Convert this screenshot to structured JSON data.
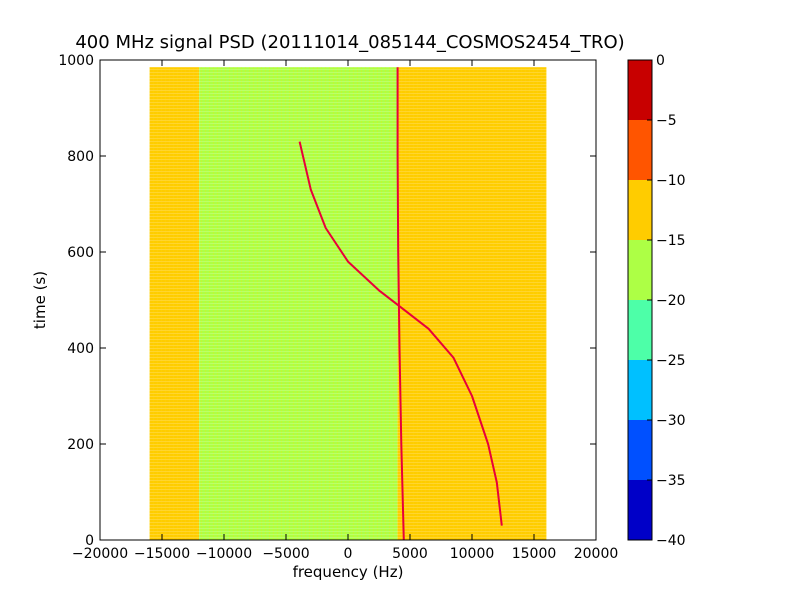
{
  "chart_data": {
    "type": "heatmap",
    "title": "400 MHz signal PSD (20111014_085144_COSMOS2454_TRO)",
    "xlabel": "frequency (Hz)",
    "ylabel": "time (s)",
    "xlim": [
      -20000,
      20000
    ],
    "ylim": [
      0,
      1000
    ],
    "xticks": [
      -20000,
      -15000,
      -10000,
      -5000,
      0,
      5000,
      10000,
      15000,
      20000
    ],
    "yticks": [
      0,
      200,
      400,
      600,
      800,
      1000
    ],
    "data_extent": {
      "x": [
        -16000,
        16000
      ],
      "y": [
        0,
        985
      ]
    },
    "regions": [
      {
        "x0": -16000,
        "x1": -12000,
        "level": "-15 to -10"
      },
      {
        "x0": -12000,
        "x1": 4000,
        "level": "-20 to -15"
      },
      {
        "x0": 4000,
        "x1": 16000,
        "level": "-15 to -10"
      }
    ],
    "traces": [
      {
        "name": "",
        "points": [
          [
            -3900,
            830
          ],
          [
            -3000,
            730
          ],
          [
            -1800,
            650
          ],
          [
            0,
            580
          ],
          [
            2500,
            520
          ],
          [
            4500,
            480
          ],
          [
            6500,
            440
          ],
          [
            8500,
            380
          ],
          [
            10000,
            300
          ],
          [
            11300,
            200
          ],
          [
            12000,
            120
          ],
          [
            12400,
            30
          ]
        ]
      },
      {
        "name": "",
        "points": [
          [
            4000,
            985
          ],
          [
            4000,
            800
          ],
          [
            4050,
            600
          ],
          [
            4150,
            400
          ],
          [
            4300,
            200
          ],
          [
            4500,
            0
          ]
        ]
      }
    ],
    "colorbar": {
      "ticks": [
        0,
        -5,
        -10,
        -15,
        -20,
        -25,
        -30,
        -35,
        -40
      ],
      "range": [
        -40,
        0
      ],
      "bands": [
        {
          "from": -40,
          "to": -35,
          "color": "#0000c8"
        },
        {
          "from": -35,
          "to": -30,
          "color": "#0050ff"
        },
        {
          "from": -30,
          "to": -25,
          "color": "#00c0ff"
        },
        {
          "from": -25,
          "to": -20,
          "color": "#4dffa8"
        },
        {
          "from": -20,
          "to": -15,
          "color": "#adff45"
        },
        {
          "from": -15,
          "to": -10,
          "color": "#ffcc00"
        },
        {
          "from": -10,
          "to": -5,
          "color": "#ff5500"
        },
        {
          "from": -5,
          "to": 0,
          "color": "#c80000"
        }
      ]
    }
  }
}
